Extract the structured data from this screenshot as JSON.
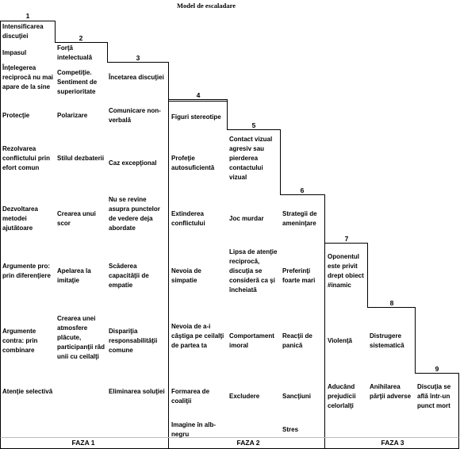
{
  "title": "Model de escaladare",
  "steps": [
    "1",
    "2",
    "3",
    "4",
    "5",
    "6",
    "7",
    "8",
    "9"
  ],
  "columns": [
    {
      "items": [
        "Intensificarea discuţiei",
        "Impasul",
        "Înţelegerea reciprocă nu mai apare de la sine",
        "Protecţie",
        "Rezolvarea conflictului prin efort comun",
        "Dezvoltarea metodei ajutătoare",
        "Argumente pro: prin diferenţiere",
        "Argumente contra: prin combinare",
        "Atenţie selectivă"
      ]
    },
    {
      "items": [
        "Forţă intelectuală",
        "Competiţie. Sentiment de superioritate",
        "Polarizare",
        "Stilul dezbaterii",
        "Crearea unui scor",
        "Apelarea la imitaţie",
        "Crearea unei atmosfere plăcute, participanţii râd unii cu ceilalţi"
      ]
    },
    {
      "items": [
        "Încetarea discuţiei",
        "Comunicare non-verbală",
        "Caz excepţional",
        "Nu se revine asupra punctelor de vedere deja abordate",
        "Scăderea capacităţii de empatie",
        "Dispariţia responsabilităţii comune",
        "Eliminarea soluţiei"
      ]
    },
    {
      "items": [
        "Figuri stereotipe",
        "Profeţie autosuficientă",
        "Extinderea conflictului",
        "Nevoia de simpatie",
        "Nevoia de a-i câştiga pe ceilalţi de partea ta",
        "Formarea de coaliţii",
        "Imagine în alb-negru"
      ]
    },
    {
      "items": [
        "Contact vizual agresiv sau pierderea contactului vizual",
        "Joc murdar",
        "Lipsa de atenţie reciprocă, discuţia se consideră ca şi încheiată",
        "Comportament imoral",
        "Excludere"
      ]
    },
    {
      "items": [
        "Strategii de ameninţare",
        "Preferinţi foarte mari",
        "Reacţii de panică",
        "Sancţiuni",
        "Stres"
      ]
    },
    {
      "items": [
        "Oponentul este privit drept obiect #inamic",
        "Violenţă",
        "Aducând prejudicii celorlalţi"
      ]
    },
    {
      "items": [
        "Distrugere sistematică",
        "Anihilarea părţii adverse"
      ]
    },
    {
      "items": [
        "Discuţia se află într-un punct mort"
      ]
    }
  ],
  "phases": [
    "FAZA 1",
    "FAZA 2",
    "FAZA 3"
  ]
}
